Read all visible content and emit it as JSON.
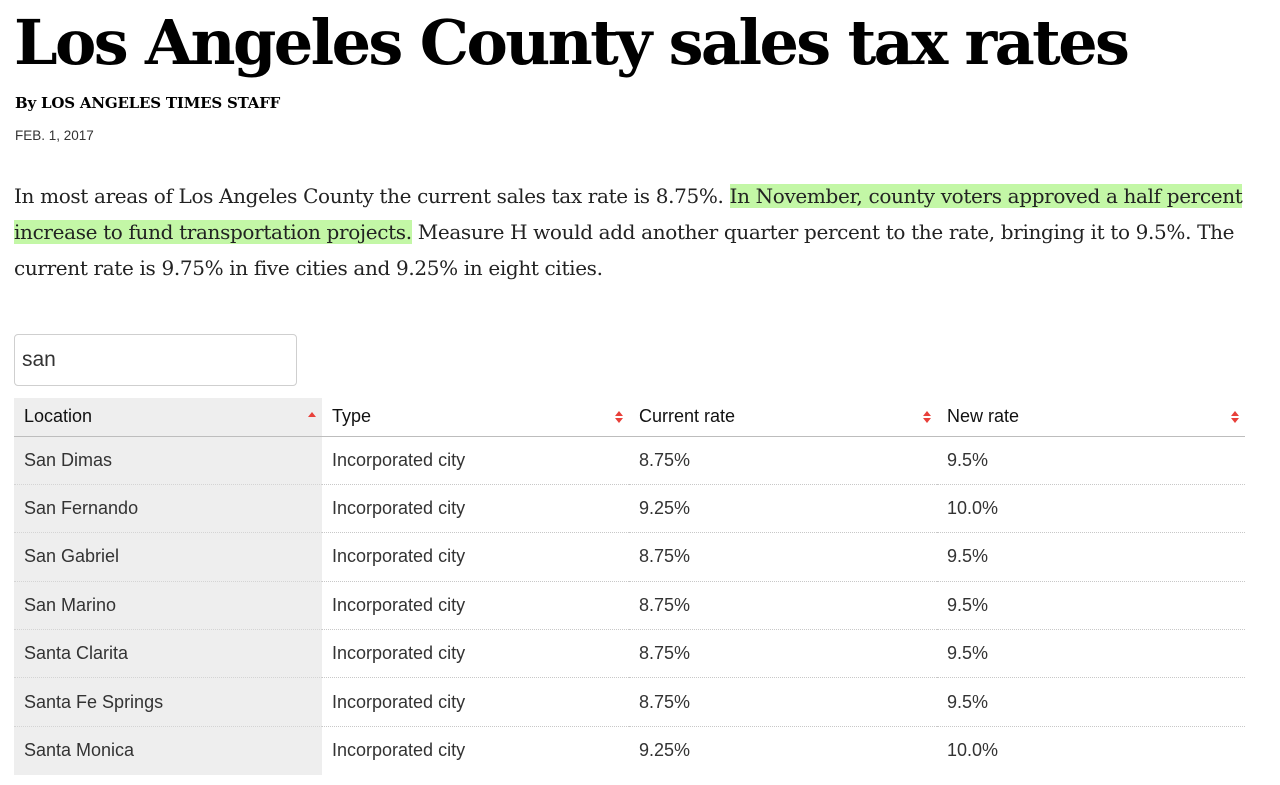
{
  "article": {
    "headline": "Los Angeles County sales tax rates",
    "byline": "By LOS ANGELES TIMES STAFF",
    "date": "FEB. 1, 2017",
    "intro": {
      "before": "In most areas of Los Angeles County the current sales tax rate is 8.75%. ",
      "highlight": "In November, county voters approved a half percent increase to fund transportation projects.",
      "after": " Measure H would add another quarter percent to the rate, bringing it to 9.5%. The current rate is 9.75% in five cities and 9.25% in eight cities."
    },
    "highlight_color": "#c3f7a6"
  },
  "search": {
    "value": "san",
    "placeholder": ""
  },
  "table": {
    "sort_color": "#e8403a",
    "sorted_column": "Location",
    "sorted_direction": "ascending",
    "columns": [
      {
        "label": "Location",
        "sort_icon": "sort-ascending-icon"
      },
      {
        "label": "Type",
        "sort_icon": "sort-both-icon"
      },
      {
        "label": "Current rate",
        "sort_icon": "sort-both-icon"
      },
      {
        "label": "New rate",
        "sort_icon": "sort-both-icon"
      }
    ],
    "rows": [
      {
        "location": "San Dimas",
        "type": "Incorporated city",
        "current": "8.75%",
        "new": "9.5%"
      },
      {
        "location": "San Fernando",
        "type": "Incorporated city",
        "current": "9.25%",
        "new": "10.0%"
      },
      {
        "location": "San Gabriel",
        "type": "Incorporated city",
        "current": "8.75%",
        "new": "9.5%"
      },
      {
        "location": "San Marino",
        "type": "Incorporated city",
        "current": "8.75%",
        "new": "9.5%"
      },
      {
        "location": "Santa Clarita",
        "type": "Incorporated city",
        "current": "8.75%",
        "new": "9.5%"
      },
      {
        "location": "Santa Fe Springs",
        "type": "Incorporated city",
        "current": "8.75%",
        "new": "9.5%"
      },
      {
        "location": "Santa Monica",
        "type": "Incorporated city",
        "current": "9.25%",
        "new": "10.0%"
      }
    ]
  }
}
